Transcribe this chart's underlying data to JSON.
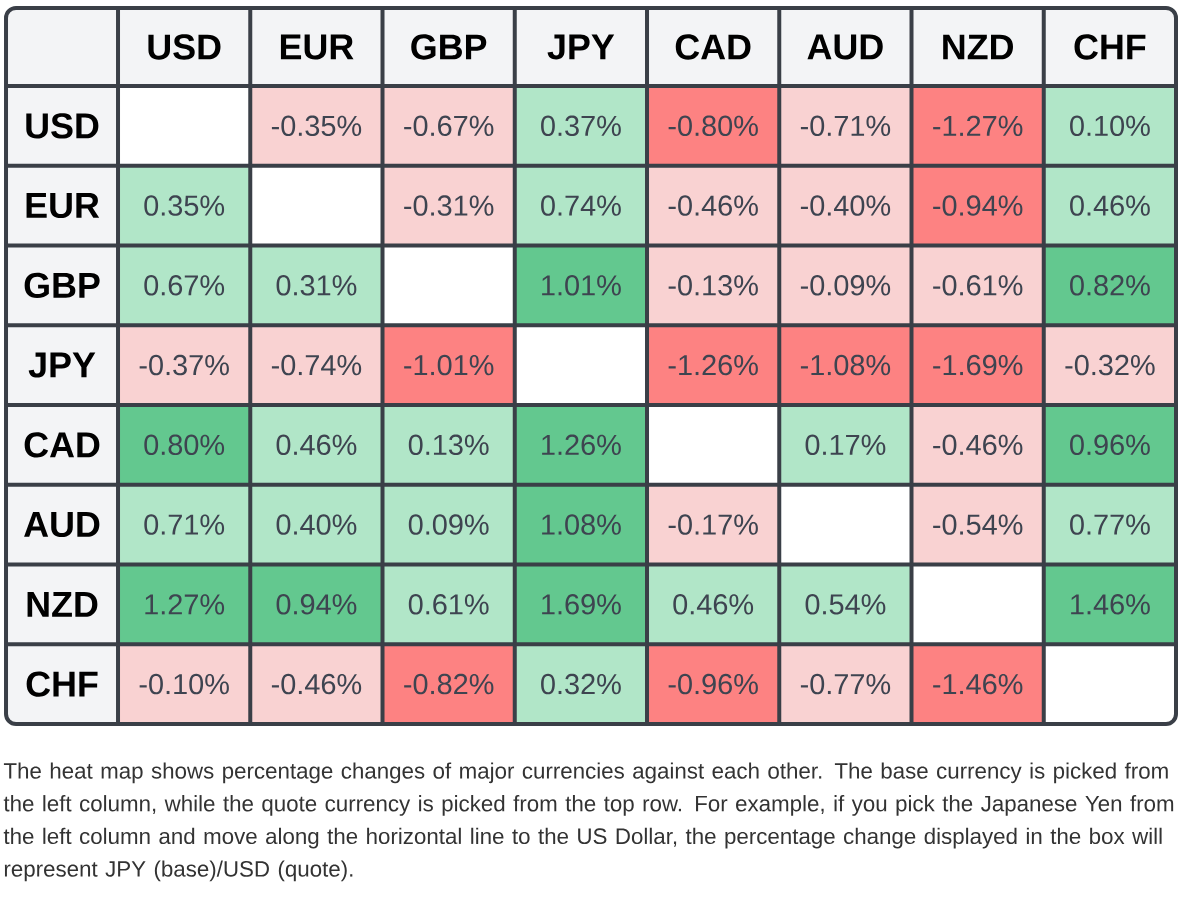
{
  "chart_data": {
    "type": "heatmap",
    "categories": [
      "USD",
      "EUR",
      "GBP",
      "JPY",
      "CAD",
      "AUD",
      "NZD",
      "CHF"
    ],
    "y_categories": [
      "USD",
      "EUR",
      "GBP",
      "JPY",
      "CAD",
      "AUD",
      "NZD",
      "CHF"
    ],
    "cells": [
      [
        null,
        -0.35,
        -0.67,
        0.37,
        -0.8,
        -0.71,
        -1.27,
        0.1
      ],
      [
        0.35,
        null,
        -0.31,
        0.74,
        -0.46,
        -0.4,
        -0.94,
        0.46
      ],
      [
        0.67,
        0.31,
        null,
        1.01,
        -0.13,
        -0.09,
        -0.61,
        0.82
      ],
      [
        -0.37,
        -0.74,
        -1.01,
        null,
        -1.26,
        -1.08,
        -1.69,
        -0.32
      ],
      [
        0.8,
        0.46,
        0.13,
        1.26,
        null,
        0.17,
        -0.46,
        0.96
      ],
      [
        0.71,
        0.4,
        0.09,
        1.08,
        -0.17,
        null,
        -0.54,
        0.77
      ],
      [
        1.27,
        0.94,
        0.61,
        1.69,
        0.46,
        0.54,
        null,
        1.46
      ],
      [
        -0.1,
        -0.46,
        -0.82,
        0.32,
        -0.96,
        -0.77,
        -1.46,
        null
      ]
    ],
    "cell_labels": [
      [
        null,
        "-0.35%",
        "-0.67%",
        "0.37%",
        "-0.80%",
        "-0.71%",
        "-1.27%",
        "0.10%"
      ],
      [
        "0.35%",
        null,
        "-0.31%",
        "0.74%",
        "-0.46%",
        "-0.40%",
        "-0.94%",
        "0.46%"
      ],
      [
        "0.67%",
        "0.31%",
        null,
        "1.01%",
        "-0.13%",
        "-0.09%",
        "-0.61%",
        "0.82%"
      ],
      [
        "-0.37%",
        "-0.74%",
        "-1.01%",
        null,
        "-1.26%",
        "-1.08%",
        "-1.69%",
        "-0.32%"
      ],
      [
        "0.80%",
        "0.46%",
        "0.13%",
        "1.26%",
        null,
        "0.17%",
        "-0.46%",
        "0.96%"
      ],
      [
        "0.71%",
        "0.40%",
        "0.09%",
        "1.08%",
        "-0.17%",
        null,
        "-0.54%",
        "0.77%"
      ],
      [
        "1.27%",
        "0.94%",
        "0.61%",
        "1.69%",
        "0.46%",
        "0.54%",
        null,
        "1.46%"
      ],
      [
        "-0.10%",
        "-0.46%",
        "-0.82%",
        "0.32%",
        "-0.96%",
        "-0.77%",
        "-1.46%",
        null
      ]
    ],
    "annotations": [
      "The heat map shows percentage changes of major currencies against each other. The base currency is picked from the left column, while the quote currency is picked from the top row. For example, if you pick the Japanese Yen from the left column and move along the horizontal line to the US Dollar, the percentage change displayed in the box will represent JPY (base)/USD (quote)."
    ]
  }
}
